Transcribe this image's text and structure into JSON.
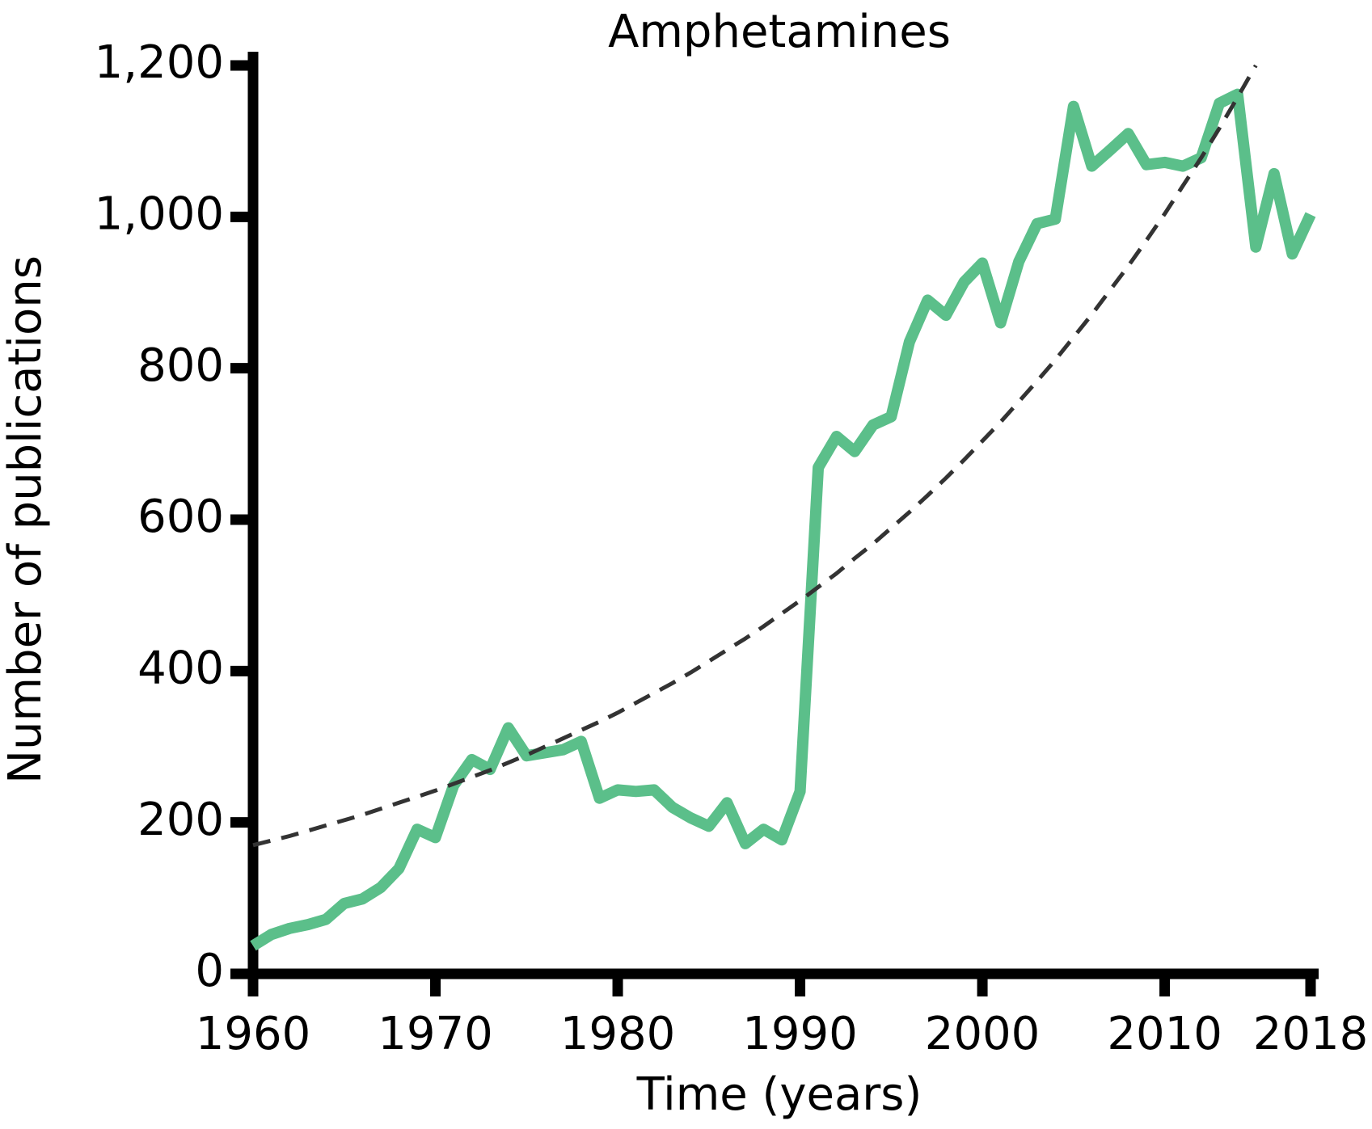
{
  "chart_data": {
    "type": "line",
    "title": "Amphetamines",
    "x_label": "Time (years)",
    "y_label": "Number of publications",
    "x": [
      1960,
      1961,
      1962,
      1963,
      1964,
      1965,
      1966,
      1967,
      1968,
      1969,
      1970,
      1971,
      1972,
      1973,
      1974,
      1975,
      1976,
      1977,
      1978,
      1979,
      1980,
      1981,
      1982,
      1983,
      1984,
      1985,
      1986,
      1987,
      1988,
      1989,
      1990,
      1991,
      1992,
      1993,
      1994,
      1995,
      1996,
      1997,
      1998,
      1999,
      2000,
      2001,
      2002,
      2003,
      2004,
      2005,
      2006,
      2007,
      2008,
      2009,
      2010,
      2011,
      2012,
      2013,
      2014,
      2015,
      2016,
      2017,
      2018
    ],
    "series": [
      {
        "color": "#5bbf8a",
        "style": "solid",
        "values": [
          37,
          52,
          60,
          65,
          72,
          93,
          99,
          114,
          139,
          191,
          180,
          249,
          283,
          270,
          325,
          288,
          292,
          296,
          307,
          232,
          243,
          241,
          243,
          220,
          206,
          195,
          226,
          172,
          191,
          177,
          241,
          669,
          710,
          690,
          725,
          736,
          835,
          890,
          870,
          914,
          939,
          860,
          941,
          991,
          997,
          1146,
          1067,
          1088,
          1110,
          1069,
          1072,
          1067,
          1078,
          1150,
          1162,
          960,
          1057,
          951,
          1003
        ]
      },
      {
        "color": "#333333",
        "style": "dashed",
        "values": [
          170,
          176,
          182,
          189,
          196,
          203,
          210,
          218,
          226,
          234,
          242,
          251,
          260,
          269,
          279,
          289,
          300,
          311,
          322,
          333,
          345,
          358,
          371,
          384,
          398,
          413,
          428,
          443,
          459,
          476,
          493,
          511,
          529,
          549,
          568,
          589,
          610,
          632,
          655,
          679,
          704,
          729,
          756,
          783,
          811,
          841,
          871,
          903,
          935,
          969,
          1004,
          1041,
          1078,
          1117,
          1158,
          1200,
          null,
          null,
          null
        ]
      }
    ],
    "xlim": [
      1960,
      2018
    ],
    "xticks": [
      1960,
      1970,
      1980,
      1990,
      2000,
      2010,
      2018
    ],
    "ylim": [
      0,
      1200
    ],
    "yticks": [
      0,
      200,
      400,
      600,
      800,
      {
        "value": 1000,
        "label": "1,000"
      },
      {
        "value": 1200,
        "label": "1,200"
      }
    ],
    "grid": false
  }
}
